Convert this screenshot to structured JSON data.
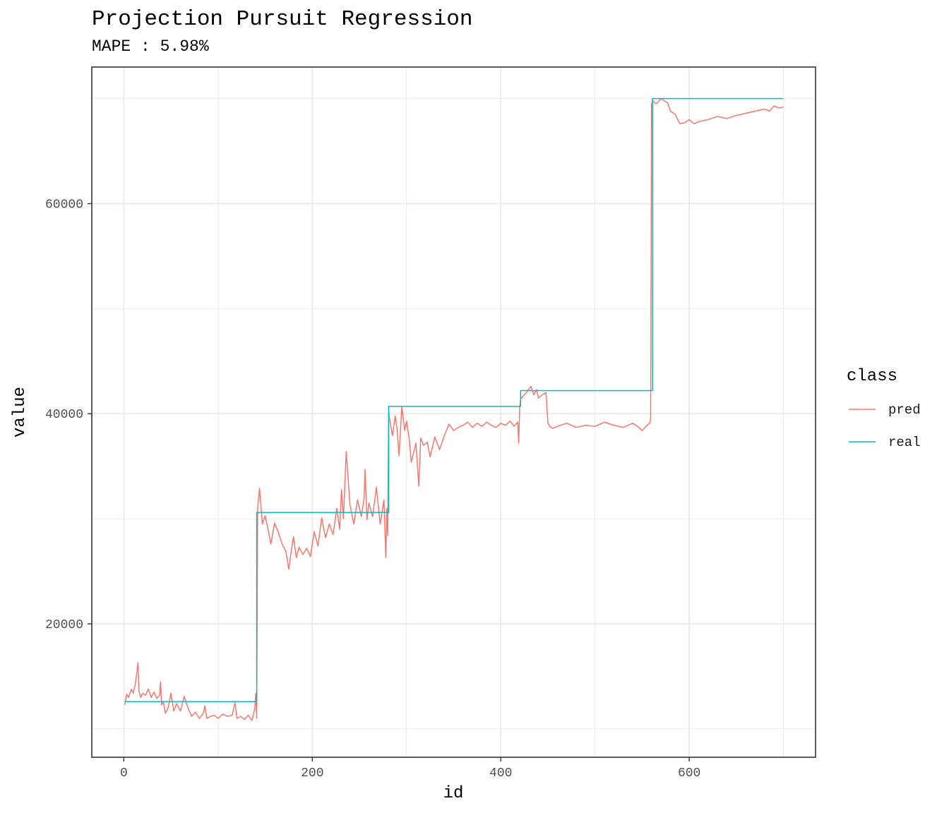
{
  "chart_data": {
    "type": "line",
    "title": "Projection Pursuit Regression",
    "subtitle": "MAPE : 5.98%",
    "xlabel": "id",
    "ylabel": "value",
    "xlim": [
      -34,
      734
    ],
    "ylim": [
      7300,
      73000
    ],
    "x_ticks": [
      0,
      200,
      400,
      600
    ],
    "x_tick_labels": [
      "0",
      "200",
      "400",
      "600"
    ],
    "y_ticks": [
      20000,
      40000,
      60000
    ],
    "y_tick_labels": [
      "20000",
      "40000",
      "60000"
    ],
    "x_minor_grid": [
      100,
      300,
      500,
      700
    ],
    "y_minor_grid": [
      10000,
      30000,
      50000,
      70000
    ],
    "grid": true,
    "legend": {
      "title": "class",
      "position": "right",
      "entries": [
        {
          "label": "pred",
          "color": "#F8766D"
        },
        {
          "label": "real",
          "color": "#00BFC4"
        }
      ]
    },
    "series": [
      {
        "name": "real",
        "color": "#00BFC4",
        "step": true,
        "x": [
          1,
          140,
          141,
          280,
          281,
          420,
          421,
          560,
          561,
          700
        ],
        "y": [
          12600,
          12600,
          30600,
          30600,
          40700,
          40700,
          42200,
          42200,
          70000,
          70000
        ]
      },
      {
        "name": "pred",
        "color": "#F8766D",
        "x": [
          1,
          3,
          5,
          8,
          10,
          12,
          14,
          15,
          16,
          18,
          20,
          23,
          26,
          29,
          32,
          35,
          38,
          39,
          40,
          42,
          44,
          47,
          50,
          53,
          56,
          60,
          64,
          68,
          72,
          76,
          80,
          84,
          86,
          88,
          92,
          96,
          100,
          105,
          110,
          115,
          118,
          120,
          124,
          128,
          132,
          136,
          139,
          140,
          141,
          142,
          144,
          147,
          150,
          153,
          156,
          160,
          164,
          168,
          172,
          175,
          177,
          180,
          183,
          186,
          190,
          194,
          198,
          202,
          206,
          210,
          214,
          218,
          222,
          226,
          229,
          231,
          233,
          236,
          240,
          244,
          248,
          252,
          255,
          256,
          258,
          260,
          264,
          268,
          272,
          276,
          278,
          279,
          280,
          281,
          282,
          285,
          288,
          290,
          292,
          295,
          298,
          300,
          303,
          305,
          310,
          313,
          315,
          318,
          322,
          325,
          330,
          335,
          340,
          345,
          350,
          355,
          360,
          365,
          370,
          375,
          380,
          385,
          390,
          395,
          400,
          405,
          410,
          414,
          418,
          419,
          420,
          421,
          424,
          428,
          432,
          435,
          438,
          440,
          444,
          448,
          450,
          452,
          455,
          460,
          470,
          480,
          490,
          500,
          510,
          520,
          530,
          540,
          545,
          550,
          555,
          558,
          559,
          560,
          561,
          565,
          570,
          575,
          577,
          580,
          585,
          590,
          595,
          600,
          605,
          610,
          620,
          630,
          640,
          650,
          660,
          670,
          680,
          685,
          690,
          695,
          700
        ],
        "y": [
          12300,
          13300,
          13000,
          13800,
          13400,
          14200,
          15500,
          16300,
          13600,
          13000,
          13400,
          13200,
          13800,
          13000,
          13500,
          12900,
          13200,
          14500,
          12300,
          12600,
          11500,
          12000,
          13400,
          11700,
          12400,
          11700,
          13100,
          12000,
          11200,
          11600,
          11000,
          11400,
          12200,
          11000,
          11200,
          11300,
          11000,
          11400,
          11200,
          11300,
          12500,
          11000,
          11200,
          10900,
          11300,
          10800,
          12000,
          13400,
          11000,
          31000,
          32900,
          29500,
          30300,
          29000,
          27600,
          29600,
          28700,
          27600,
          26900,
          25200,
          26500,
          28300,
          26300,
          27300,
          26600,
          27200,
          26400,
          28800,
          27400,
          30100,
          28200,
          29500,
          28500,
          31000,
          29000,
          32800,
          30000,
          36400,
          31300,
          29500,
          31800,
          30200,
          32000,
          34700,
          29900,
          31500,
          30200,
          33000,
          29500,
          31800,
          26300,
          31000,
          28400,
          40300,
          39500,
          37900,
          39800,
          38500,
          36000,
          40700,
          38400,
          39300,
          37500,
          35400,
          37200,
          33100,
          37700,
          37000,
          37300,
          35900,
          37800,
          36600,
          37900,
          39000,
          38400,
          38700,
          38900,
          39200,
          38700,
          39100,
          38800,
          39200,
          38900,
          38700,
          39100,
          38900,
          39300,
          38800,
          39200,
          37200,
          40500,
          41400,
          41700,
          42100,
          42600,
          41800,
          42300,
          41500,
          41800,
          42000,
          39100,
          38800,
          38600,
          38800,
          39100,
          38700,
          38900,
          38800,
          39200,
          38900,
          38700,
          39100,
          38800,
          38400,
          38900,
          39100,
          39400,
          69500,
          69800,
          69500,
          70000,
          69700,
          69600,
          68800,
          68500,
          67600,
          67700,
          68000,
          67600,
          67800,
          68000,
          68300,
          68100,
          68400,
          68600,
          68800,
          69000,
          68800,
          69300,
          69100,
          69200
        ]
      }
    ]
  }
}
